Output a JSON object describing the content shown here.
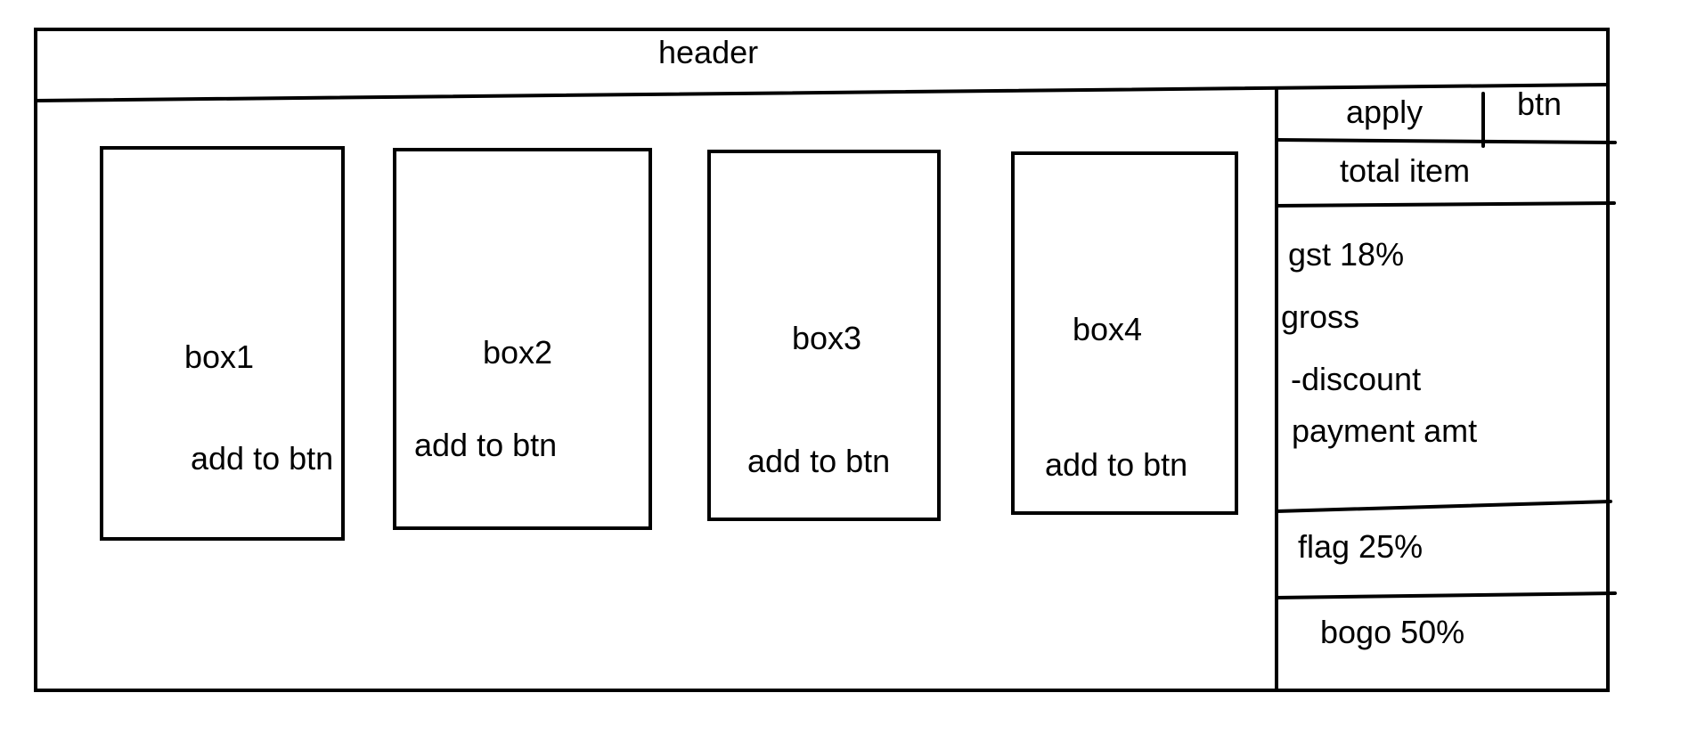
{
  "header": {
    "title": "header"
  },
  "products": [
    {
      "label": "box1",
      "button_label": "add to btn"
    },
    {
      "label": "box2",
      "button_label": "add to btn"
    },
    {
      "label": "box3",
      "button_label": "add to btn"
    },
    {
      "label": "box4",
      "button_label": "add to btn"
    }
  ],
  "sidebar": {
    "apply_label": "apply",
    "apply_button_label": "btn",
    "total_item_label": "total item",
    "summary": {
      "gst": "gst 18%",
      "gross": "gross",
      "discount": "-discount",
      "payment": "payment amt"
    },
    "offers": {
      "flag": "flag 25%",
      "bogo": "bogo 50%"
    }
  },
  "colors": {
    "ink": "#000000",
    "paper": "#ffffff"
  }
}
